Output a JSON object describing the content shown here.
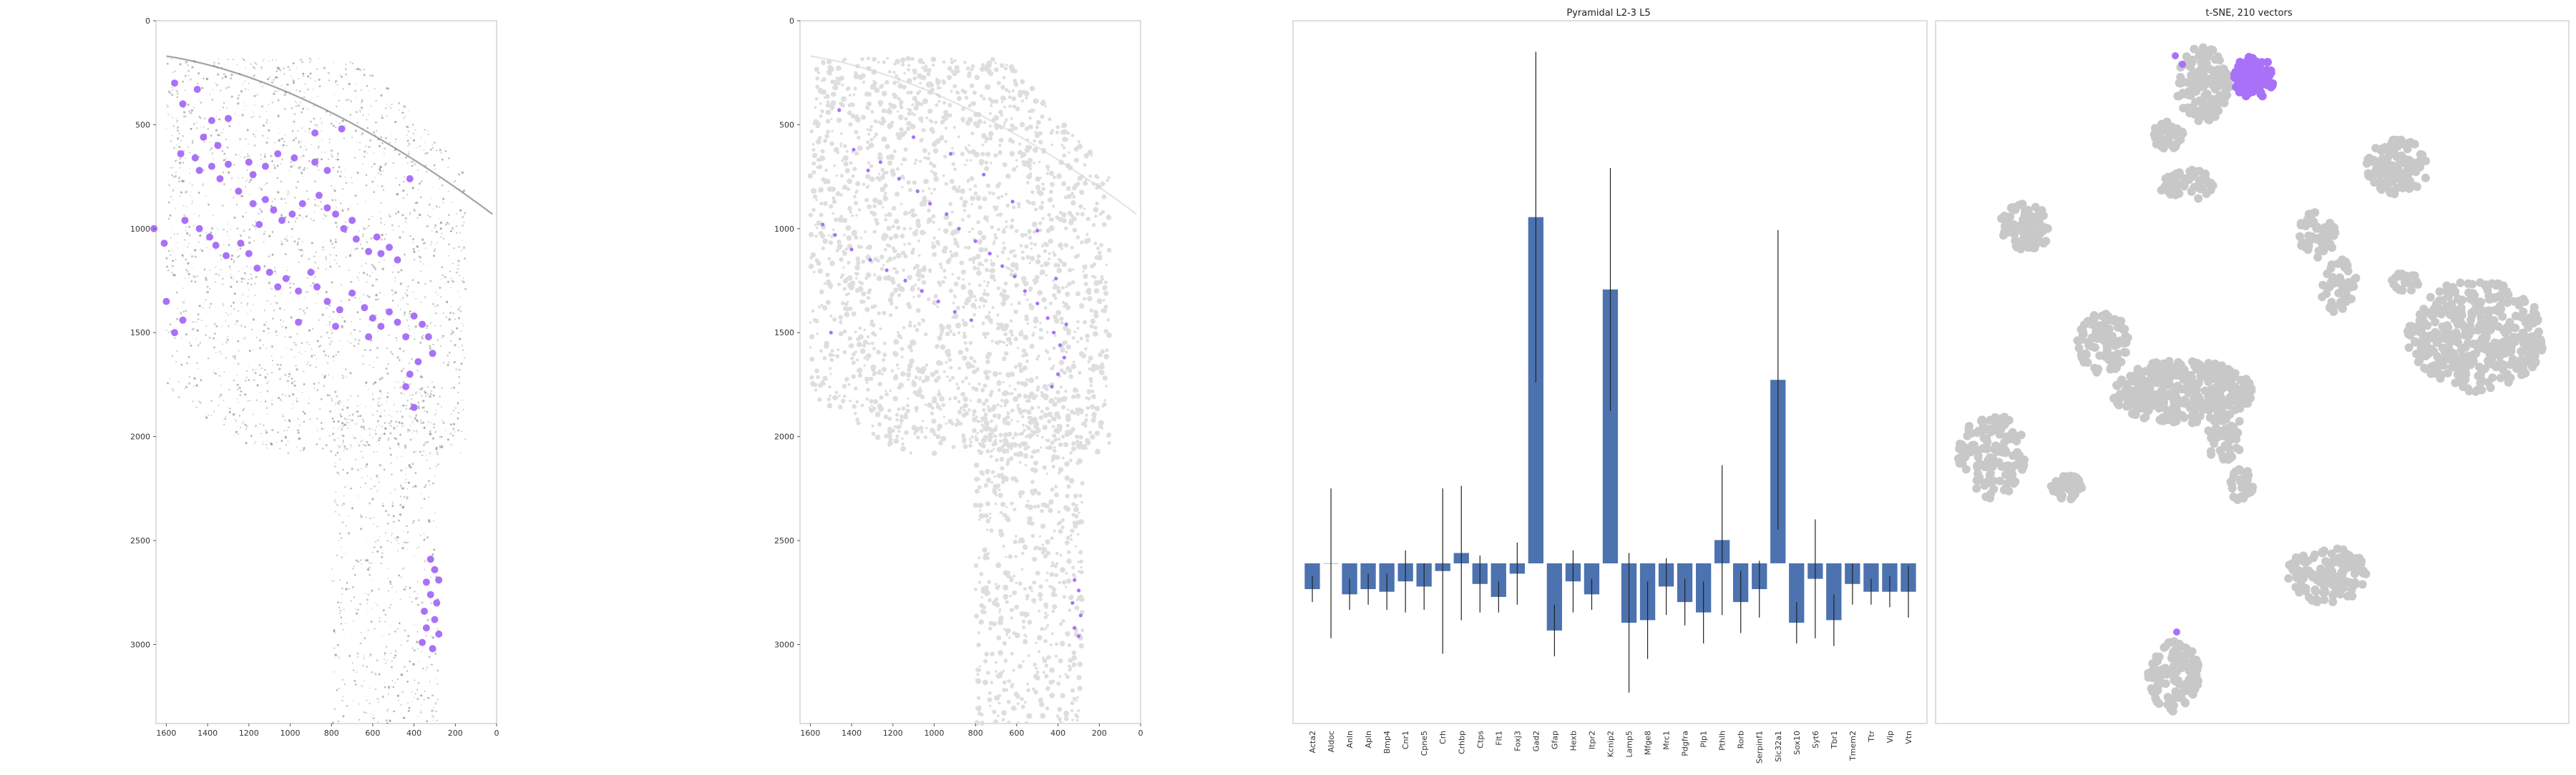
{
  "colors": {
    "highlight": "#a971f7",
    "bar": "#4c72b0",
    "tsne_gray": "#c8c8c8",
    "tissue_gray": "#8c8c8c",
    "tissue_light": "#dedede"
  },
  "chart_data": [
    {
      "type": "scatter",
      "title": "",
      "xlim": [
        1650,
        0
      ],
      "ylim": [
        3380,
        0
      ],
      "x_ticks": [
        "1600",
        "1400",
        "1200",
        "1000",
        "800",
        "600",
        "400",
        "200",
        "0"
      ],
      "y_ticks": [
        "0",
        "500",
        "1000",
        "1500",
        "2000",
        "2500",
        "3000"
      ],
      "series": [
        {
          "color": "#a971f7",
          "points": [
            [
              1560,
              300
            ],
            [
              1520,
              400
            ],
            [
              1450,
              330
            ],
            [
              1380,
              480
            ],
            [
              1300,
              470
            ],
            [
              1420,
              560
            ],
            [
              1350,
              600
            ],
            [
              1530,
              640
            ],
            [
              1460,
              660
            ],
            [
              1380,
              700
            ],
            [
              1300,
              690
            ],
            [
              1440,
              720
            ],
            [
              1340,
              760
            ],
            [
              1200,
              680
            ],
            [
              1180,
              740
            ],
            [
              1120,
              700
            ],
            [
              1060,
              640
            ],
            [
              980,
              660
            ],
            [
              880,
              680
            ],
            [
              820,
              720
            ],
            [
              1250,
              820
            ],
            [
              1180,
              880
            ],
            [
              1120,
              860
            ],
            [
              1080,
              910
            ],
            [
              1040,
              960
            ],
            [
              990,
              930
            ],
            [
              940,
              880
            ],
            [
              860,
              840
            ],
            [
              820,
              900
            ],
            [
              780,
              930
            ],
            [
              740,
              1000
            ],
            [
              700,
              960
            ],
            [
              680,
              1050
            ],
            [
              620,
              1110
            ],
            [
              580,
              1040
            ],
            [
              560,
              1120
            ],
            [
              520,
              1090
            ],
            [
              480,
              1150
            ],
            [
              1510,
              960
            ],
            [
              1440,
              1000
            ],
            [
              1390,
              1040
            ],
            [
              1360,
              1080
            ],
            [
              1310,
              1130
            ],
            [
              1240,
              1070
            ],
            [
              1200,
              1120
            ],
            [
              1160,
              1190
            ],
            [
              1100,
              1210
            ],
            [
              1060,
              1280
            ],
            [
              1020,
              1240
            ],
            [
              960,
              1300
            ],
            [
              900,
              1210
            ],
            [
              870,
              1280
            ],
            [
              820,
              1350
            ],
            [
              760,
              1390
            ],
            [
              700,
              1310
            ],
            [
              640,
              1380
            ],
            [
              600,
              1430
            ],
            [
              560,
              1470
            ],
            [
              520,
              1400
            ],
            [
              480,
              1450
            ],
            [
              440,
              1520
            ],
            [
              400,
              1420
            ],
            [
              360,
              1460
            ],
            [
              330,
              1520
            ],
            [
              310,
              1600
            ],
            [
              380,
              1640
            ],
            [
              420,
              1700
            ],
            [
              440,
              1760
            ],
            [
              400,
              1860
            ],
            [
              1600,
              1350
            ],
            [
              1520,
              1440
            ],
            [
              1560,
              1500
            ],
            [
              1610,
              1070
            ],
            [
              1660,
              1000
            ],
            [
              320,
              2590
            ],
            [
              300,
              2640
            ],
            [
              280,
              2690
            ],
            [
              340,
              2700
            ],
            [
              320,
              2760
            ],
            [
              290,
              2800
            ],
            [
              350,
              2840
            ],
            [
              300,
              2880
            ],
            [
              340,
              2920
            ],
            [
              280,
              2950
            ],
            [
              360,
              2990
            ],
            [
              310,
              3020
            ],
            [
              880,
              540
            ],
            [
              750,
              520
            ],
            [
              420,
              760
            ],
            [
              1150,
              980
            ],
            [
              960,
              1450
            ],
            [
              780,
              1470
            ],
            [
              620,
              1520
            ]
          ]
        }
      ]
    },
    {
      "type": "scatter",
      "title": "",
      "xlim": [
        1650,
        0
      ],
      "ylim": [
        3380,
        0
      ],
      "x_ticks": [
        "1600",
        "1400",
        "1200",
        "1000",
        "800",
        "600",
        "400",
        "200",
        "0"
      ],
      "y_ticks": [
        "0",
        "500",
        "1000",
        "1500",
        "2000",
        "2500",
        "3000"
      ],
      "series": [
        {
          "color": "#a971f7",
          "points": [
            [
              1460,
              430
            ],
            [
              1390,
              620
            ],
            [
              1320,
              720
            ],
            [
              1260,
              680
            ],
            [
              1170,
              760
            ],
            [
              1080,
              820
            ],
            [
              1020,
              880
            ],
            [
              940,
              930
            ],
            [
              880,
              1000
            ],
            [
              800,
              1060
            ],
            [
              730,
              1120
            ],
            [
              670,
              1180
            ],
            [
              610,
              1230
            ],
            [
              560,
              1300
            ],
            [
              500,
              1360
            ],
            [
              450,
              1430
            ],
            [
              420,
              1500
            ],
            [
              390,
              1560
            ],
            [
              370,
              1620
            ],
            [
              400,
              1700
            ],
            [
              430,
              1760
            ],
            [
              1540,
              980
            ],
            [
              1480,
              1030
            ],
            [
              1400,
              1100
            ],
            [
              1310,
              1150
            ],
            [
              1230,
              1200
            ],
            [
              1140,
              1250
            ],
            [
              1060,
              1300
            ],
            [
              980,
              1350
            ],
            [
              900,
              1400
            ],
            [
              820,
              1440
            ],
            [
              1500,
              1500
            ],
            [
              320,
              2690
            ],
            [
              300,
              2740
            ],
            [
              330,
              2800
            ],
            [
              290,
              2860
            ],
            [
              320,
              2920
            ],
            [
              300,
              2960
            ],
            [
              360,
              1460
            ],
            [
              410,
              1240
            ],
            [
              500,
              1010
            ],
            [
              620,
              870
            ],
            [
              760,
              740
            ],
            [
              920,
              640
            ],
            [
              1100,
              560
            ]
          ]
        }
      ]
    },
    {
      "type": "bar",
      "title": "Pyramidal L2-3 L5",
      "ylim": [
        -0.62,
        2.1
      ],
      "y_ticks": [
        "2.0",
        "1.5",
        "1.0",
        "0.5",
        "0.0",
        "−0.5"
      ],
      "categories": [
        "Acta2",
        "Aldoc",
        "Anln",
        "Apln",
        "Bmp4",
        "Cnr1",
        "Cpne5",
        "Crh",
        "Crhbp",
        "Ctps",
        "Flt1",
        "Foxj3",
        "Gad2",
        "Gfap",
        "Hexb",
        "Itpr2",
        "Kcnip2",
        "Lamp5",
        "Mfge8",
        "Mrc1",
        "Pdgfra",
        "Plp1",
        "Pthlh",
        "Rorb",
        "Serpinf1",
        "Slc32a1",
        "Sox10",
        "Syt6",
        "Tbr1",
        "Tmem2",
        "Ttr",
        "Vip",
        "Vtn"
      ],
      "values": [
        -0.1,
        0.0,
        -0.12,
        -0.1,
        -0.11,
        -0.07,
        -0.09,
        -0.03,
        0.04,
        -0.08,
        -0.13,
        -0.04,
        1.34,
        -0.26,
        -0.07,
        -0.12,
        1.06,
        -0.23,
        -0.22,
        -0.09,
        -0.15,
        -0.19,
        0.09,
        -0.15,
        -0.1,
        0.71,
        -0.23,
        -0.06,
        -0.22,
        -0.08,
        -0.11,
        -0.11,
        -0.11
      ],
      "errors": [
        0.05,
        0.29,
        0.06,
        0.06,
        0.07,
        0.12,
        0.09,
        0.32,
        0.26,
        0.11,
        0.06,
        0.12,
        0.64,
        0.1,
        0.12,
        0.06,
        0.47,
        0.27,
        0.15,
        0.11,
        0.09,
        0.12,
        0.29,
        0.12,
        0.11,
        0.58,
        0.08,
        0.23,
        0.1,
        0.08,
        0.05,
        0.06,
        0.1
      ]
    },
    {
      "type": "scatter",
      "title": "t-SNE, 210 vectors",
      "series": []
    }
  ]
}
